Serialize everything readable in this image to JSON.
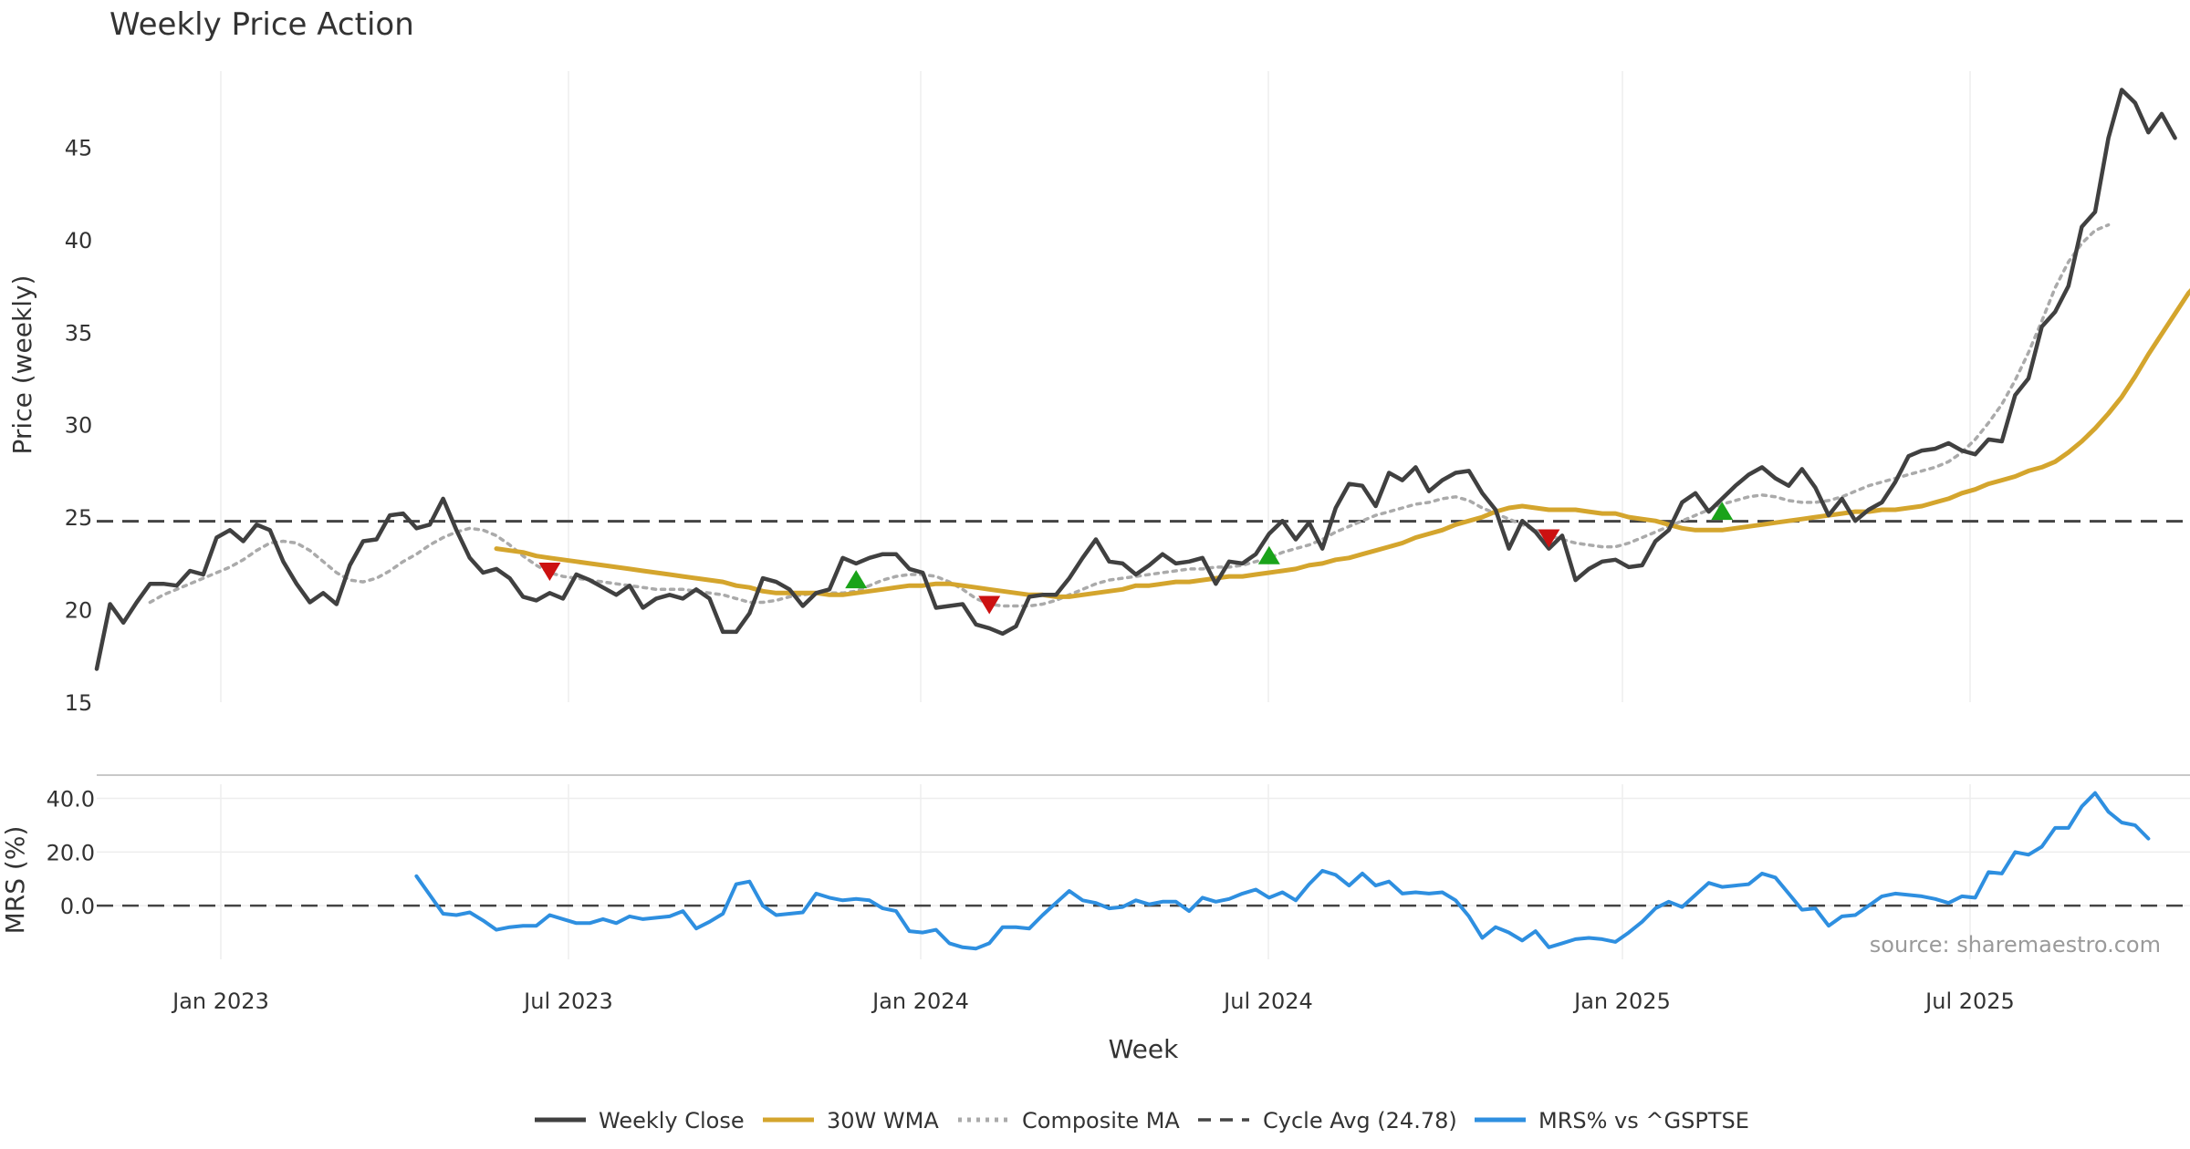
{
  "chart_data": {
    "type": "line",
    "title": "Weekly Price Action",
    "xlabel": "Week",
    "watermark": "source: sharemaestro.com",
    "x_ticks": [
      "Jan 2023",
      "Jul 2023",
      "Jan 2024",
      "Jul 2024",
      "Jan 2025",
      "Jul 2025"
    ],
    "price_panel": {
      "ylabel": "Price (weekly)",
      "ylim": [
        15,
        50
      ],
      "yticks": [
        "15",
        "20",
        "25",
        "30",
        "35",
        "40",
        "45"
      ],
      "cycle_avg": 24.78,
      "series": [
        {
          "name": "Weekly Close",
          "color": "#404040",
          "style": "solid",
          "start_week": 0,
          "values": [
            16.8,
            20.3,
            19.3,
            20.4,
            21.4,
            21.4,
            21.3,
            22.1,
            21.9,
            23.9,
            24.3,
            23.7,
            24.6,
            24.3,
            22.6,
            21.4,
            20.4,
            20.9,
            20.3,
            22.4,
            23.7,
            23.8,
            25.1,
            25.2,
            24.4,
            24.6,
            26.0,
            24.3,
            22.8,
            22.0,
            22.2,
            21.7,
            20.7,
            20.5,
            20.9,
            20.6,
            21.9,
            21.6,
            21.2,
            20.8,
            21.3,
            20.1,
            20.6,
            20.8,
            20.6,
            21.1,
            20.6,
            18.8,
            18.8,
            19.8,
            21.7,
            21.5,
            21.1,
            20.2,
            20.9,
            21.1,
            22.8,
            22.5,
            22.8,
            23.0,
            23.0,
            22.2,
            22.0,
            20.1,
            20.2,
            20.3,
            19.2,
            19.0,
            18.7,
            19.1,
            20.7,
            20.8,
            20.8,
            21.7,
            22.8,
            23.8,
            22.6,
            22.5,
            21.9,
            22.4,
            23.0,
            22.5,
            22.6,
            22.8,
            21.4,
            22.6,
            22.5,
            23.0,
            24.1,
            24.8,
            23.8,
            24.7,
            23.3,
            25.5,
            26.8,
            26.7,
            25.6,
            27.4,
            27.0,
            27.7,
            26.4,
            27.0,
            27.4,
            27.5,
            26.3,
            25.4,
            23.3,
            24.8,
            24.2,
            23.3,
            24.0,
            21.6,
            22.2,
            22.6,
            22.7,
            22.3,
            22.4,
            23.7,
            24.3,
            25.8,
            26.3,
            25.3,
            26.0,
            26.7,
            27.3,
            27.7,
            27.1,
            26.7,
            27.6,
            26.6,
            25.1,
            26.0,
            24.8,
            25.4,
            25.8,
            26.9,
            28.3,
            28.6,
            28.7,
            29.0,
            28.6,
            28.4,
            29.2,
            29.1,
            31.6,
            32.5,
            35.3,
            36.1,
            37.5,
            40.7,
            41.5,
            45.5,
            48.1,
            47.4,
            45.8,
            46.8,
            45.5
          ]
        },
        {
          "name": "30W WMA",
          "color": "#d4a52d",
          "style": "solid",
          "start_week": 30,
          "values": [
            23.3,
            23.2,
            23.1,
            22.9,
            22.8,
            22.7,
            22.6,
            22.5,
            22.4,
            22.3,
            22.2,
            22.1,
            22.0,
            21.9,
            21.8,
            21.7,
            21.6,
            21.5,
            21.3,
            21.2,
            21.0,
            20.9,
            20.9,
            20.9,
            20.9,
            20.8,
            20.8,
            20.9,
            21.0,
            21.1,
            21.2,
            21.3,
            21.3,
            21.4,
            21.4,
            21.3,
            21.2,
            21.1,
            21.0,
            20.9,
            20.8,
            20.8,
            20.7,
            20.7,
            20.8,
            20.9,
            21.0,
            21.1,
            21.3,
            21.3,
            21.4,
            21.5,
            21.5,
            21.6,
            21.7,
            21.8,
            21.8,
            21.9,
            22.0,
            22.1,
            22.2,
            22.4,
            22.5,
            22.7,
            22.8,
            23.0,
            23.2,
            23.4,
            23.6,
            23.9,
            24.1,
            24.3,
            24.6,
            24.8,
            25.0,
            25.3,
            25.5,
            25.6,
            25.5,
            25.4,
            25.4,
            25.4,
            25.3,
            25.2,
            25.2,
            25.0,
            24.9,
            24.8,
            24.6,
            24.4,
            24.3,
            24.3,
            24.3,
            24.4,
            24.5,
            24.6,
            24.7,
            24.8,
            24.9,
            25.0,
            25.1,
            25.2,
            25.3,
            25.3,
            25.4,
            25.4,
            25.5,
            25.6,
            25.8,
            26.0,
            26.3,
            26.5,
            26.8,
            27.0,
            27.2,
            27.5,
            27.7,
            28.0,
            28.5,
            29.1,
            29.8,
            30.6,
            31.5,
            32.6,
            33.8,
            34.9,
            36.0,
            37.1,
            37.9
          ]
        },
        {
          "name": "Composite MA",
          "color": "#aaaaaa",
          "style": "dotted",
          "start_week": 4,
          "values": [
            20.4,
            20.8,
            21.1,
            21.4,
            21.7,
            22.0,
            22.3,
            22.7,
            23.2,
            23.6,
            23.7,
            23.6,
            23.2,
            22.6,
            22.0,
            21.6,
            21.5,
            21.7,
            22.1,
            22.6,
            23.0,
            23.5,
            23.9,
            24.2,
            24.4,
            24.3,
            24.0,
            23.5,
            22.9,
            22.4,
            22.0,
            21.8,
            21.7,
            21.6,
            21.5,
            21.4,
            21.3,
            21.2,
            21.1,
            21.1,
            21.1,
            21.0,
            20.9,
            20.8,
            20.6,
            20.4,
            20.4,
            20.5,
            20.7,
            20.8,
            20.9,
            20.9,
            20.9,
            21.0,
            21.3,
            21.6,
            21.8,
            21.9,
            21.9,
            21.8,
            21.5,
            21.1,
            20.6,
            20.3,
            20.2,
            20.2,
            20.2,
            20.3,
            20.5,
            20.8,
            21.1,
            21.4,
            21.6,
            21.7,
            21.8,
            21.9,
            22.0,
            22.1,
            22.2,
            22.2,
            22.3,
            22.3,
            22.4,
            22.6,
            22.8,
            23.1,
            23.3,
            23.5,
            23.8,
            24.2,
            24.5,
            24.8,
            25.1,
            25.3,
            25.5,
            25.7,
            25.8,
            26.0,
            26.1,
            25.9,
            25.5,
            25.2,
            24.9,
            24.6,
            24.3,
            24.0,
            23.8,
            23.6,
            23.5,
            23.4,
            23.4,
            23.6,
            23.9,
            24.2,
            24.5,
            24.8,
            25.1,
            25.4,
            25.7,
            25.9,
            26.1,
            26.2,
            26.1,
            25.9,
            25.8,
            25.8,
            25.9,
            26.1,
            26.4,
            26.7,
            26.9,
            27.1,
            27.3,
            27.5,
            27.7,
            28.0,
            28.5,
            29.2,
            30.1,
            31.1,
            32.4,
            33.9,
            35.6,
            37.4,
            38.8,
            39.8,
            40.5,
            40.8
          ]
        }
      ],
      "signals": [
        {
          "type": "sell",
          "week": 34,
          "value": 22.1,
          "color": "#cc1111"
        },
        {
          "type": "buy",
          "week": 57,
          "value": 21.6,
          "color": "#1aa31a"
        },
        {
          "type": "sell",
          "week": 67,
          "value": 20.3,
          "color": "#cc1111"
        },
        {
          "type": "buy",
          "week": 88,
          "value": 22.9,
          "color": "#1aa31a"
        },
        {
          "type": "sell",
          "week": 109,
          "value": 23.9,
          "color": "#cc1111"
        },
        {
          "type": "buy",
          "week": 122,
          "value": 25.3,
          "color": "#1aa31a"
        }
      ]
    },
    "mrs_panel": {
      "ylabel": "MRS (%)",
      "ylim": [
        -20,
        48
      ],
      "yticks": [
        "0.0",
        "20.0",
        "40.0"
      ],
      "zero_line": 0,
      "series": [
        {
          "name": "MRS% vs ^GSPTSE",
          "color": "#2e8fe0",
          "style": "solid",
          "start_week": 24,
          "values": [
            11.0,
            4.0,
            -3.0,
            -3.5,
            -2.5,
            -5.5,
            -9.0,
            -8.0,
            -7.5,
            -7.5,
            -3.5,
            -5.0,
            -6.5,
            -6.5,
            -5.0,
            -6.5,
            -4.0,
            -5.0,
            -4.5,
            -4.0,
            -2.0,
            -8.5,
            -6.0,
            -3.0,
            8.0,
            9.0,
            0.0,
            -3.5,
            -3.0,
            -2.5,
            4.5,
            3.0,
            2.0,
            2.5,
            2.0,
            -1.0,
            -2.0,
            -9.5,
            -10.0,
            -9.0,
            -14.0,
            -15.5,
            -16.0,
            -14.0,
            -8.0,
            -8.0,
            -8.5,
            -3.5,
            1.0,
            5.5,
            2.0,
            1.0,
            -1.0,
            -0.5,
            2.0,
            0.5,
            1.5,
            1.5,
            -2.0,
            3.0,
            1.5,
            2.5,
            4.5,
            6.0,
            3.0,
            5.0,
            2.0,
            8.0,
            13.0,
            11.5,
            7.5,
            12.0,
            7.5,
            9.0,
            4.5,
            5.0,
            4.5,
            5.0,
            2.0,
            -4.0,
            -12.0,
            -8.0,
            -10.0,
            -13.0,
            -9.5,
            -15.5,
            -14.0,
            -12.5,
            -12.0,
            -12.5,
            -13.5,
            -10.0,
            -6.0,
            -1.0,
            1.5,
            -0.5,
            4.0,
            8.5,
            7.0,
            7.5,
            8.0,
            12.0,
            10.5,
            4.5,
            -1.5,
            -1.0,
            -7.5,
            -4.0,
            -3.5,
            0.0,
            3.5,
            4.5,
            4.0,
            3.5,
            2.5,
            1.0,
            3.5,
            3.0,
            12.5,
            12.0,
            20.0,
            19.0,
            22.0,
            29.0,
            29.0,
            37.0,
            42.0,
            35.0,
            31.0,
            30.0,
            25.0
          ]
        }
      ]
    },
    "legend": [
      {
        "label": "Weekly Close",
        "color": "#404040",
        "style": "solid"
      },
      {
        "label": "30W WMA",
        "color": "#d4a52d",
        "style": "solid"
      },
      {
        "label": "Composite MA",
        "color": "#aaaaaa",
        "style": "dotted"
      },
      {
        "label": "Cycle Avg (24.78)",
        "color": "#444444",
        "style": "dashed"
      },
      {
        "label": "MRS% vs ^GSPTSE",
        "color": "#2e8fe0",
        "style": "solid"
      }
    ]
  }
}
